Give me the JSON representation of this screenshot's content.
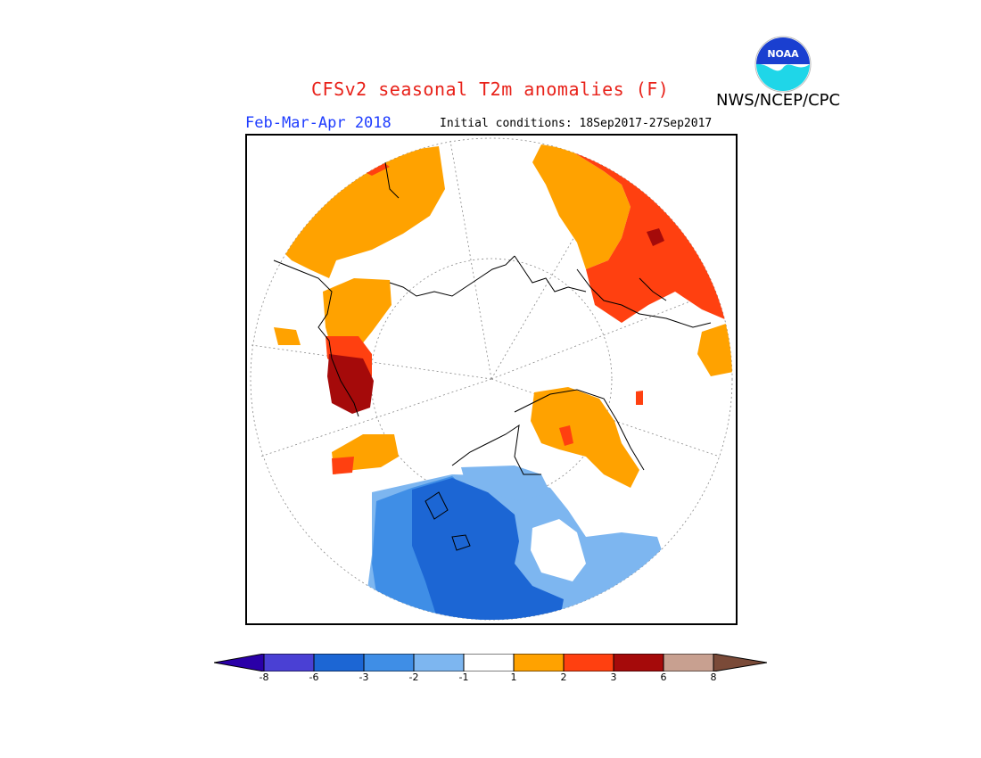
{
  "title": "CFSv2 seasonal T2m anomalies (F)",
  "agency": "NWS/NCEP/CPC",
  "season": "Feb-Mar-Apr 2018",
  "initial_conditions": "Initial conditions: 18Sep2017-27Sep2017",
  "logo": {
    "text": "NOAA",
    "icon": "noaa-logo-icon"
  },
  "colors": {
    "lt_m8": "#2a00a8",
    "m8_m6": "#4a40d4",
    "m6_m3": "#1c66d4",
    "m3_m2": "#3f8ee6",
    "m2_m1": "#7db6f0",
    "m1_1": "#ffffff",
    "p1_p2": "#ffa200",
    "p2_p3": "#ff4010",
    "p3_p6": "#a50a0a",
    "p6_p8": "#c8a090",
    "gt_8": "#7a4a38"
  },
  "colorbar": {
    "ticks": [
      "-8",
      "-6",
      "-3",
      "-2",
      "-1",
      "1",
      "2",
      "3",
      "6",
      "8"
    ]
  }
}
